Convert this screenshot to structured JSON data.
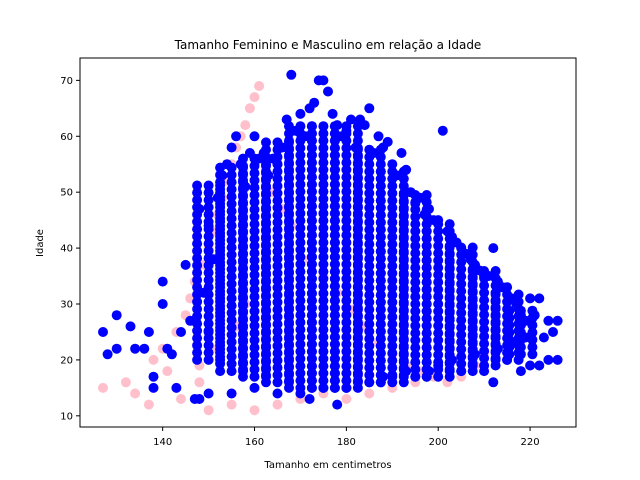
{
  "chart_data": {
    "type": "scatter",
    "title": "Tamanho Feminino e Masculino em relação a Idade",
    "xlabel": "Tamanho em centimetros",
    "ylabel": "Idade",
    "xlim": [
      122,
      230
    ],
    "ylim": [
      8,
      74
    ],
    "xticks": [
      140,
      160,
      180,
      200,
      220
    ],
    "yticks": [
      10,
      20,
      30,
      40,
      50,
      60,
      70
    ],
    "grid": false,
    "legend": "none",
    "series": [
      {
        "color": "#ffc0cb",
        "x_range": [
          127,
          210
        ],
        "y_range": [
          11,
          69
        ],
        "points": [
          [
            127,
            15
          ],
          [
            132,
            16
          ],
          [
            134,
            14
          ],
          [
            137,
            12
          ],
          [
            138,
            20
          ],
          [
            140,
            22
          ],
          [
            141,
            18
          ],
          [
            143,
            25
          ],
          [
            144,
            13
          ],
          [
            145,
            28
          ],
          [
            146,
            31
          ],
          [
            147,
            34
          ],
          [
            148,
            19
          ],
          [
            149,
            37
          ],
          [
            150,
            40
          ],
          [
            151,
            43
          ],
          [
            152,
            46
          ],
          [
            153,
            49
          ],
          [
            154,
            52
          ],
          [
            155,
            55
          ],
          [
            156,
            58
          ],
          [
            157,
            60
          ],
          [
            158,
            62
          ],
          [
            159,
            65
          ],
          [
            160,
            67
          ],
          [
            161,
            69
          ],
          [
            162,
            56
          ],
          [
            163,
            53
          ],
          [
            164,
            50
          ],
          [
            166,
            47
          ],
          [
            168,
            44
          ],
          [
            170,
            41
          ],
          [
            172,
            38
          ],
          [
            175,
            35
          ],
          [
            178,
            32
          ],
          [
            181,
            29
          ],
          [
            184,
            26
          ],
          [
            187,
            23
          ],
          [
            190,
            21
          ],
          [
            193,
            19
          ],
          [
            196,
            18
          ],
          [
            199,
            17
          ],
          [
            202,
            16
          ],
          [
            205,
            17
          ],
          [
            208,
            19
          ],
          [
            210,
            21
          ],
          [
            150,
            11
          ],
          [
            155,
            12
          ],
          [
            160,
            11
          ],
          [
            165,
            12
          ],
          [
            170,
            13
          ],
          [
            175,
            14
          ],
          [
            180,
            13
          ],
          [
            185,
            14
          ],
          [
            190,
            15
          ],
          [
            195,
            16
          ],
          [
            148,
            16
          ],
          [
            152,
            22
          ],
          [
            156,
            26
          ],
          [
            158,
            30
          ]
        ]
      },
      {
        "color": "#0000ff",
        "x_range": [
          127,
          226
        ],
        "y_range": [
          12,
          71
        ],
        "points": [
          [
            127,
            25
          ],
          [
            128,
            21
          ],
          [
            130,
            28
          ],
          [
            130,
            22
          ],
          [
            133,
            26
          ],
          [
            134,
            22
          ],
          [
            136,
            22
          ],
          [
            137,
            25
          ],
          [
            138,
            17
          ],
          [
            138,
            15
          ],
          [
            140,
            34
          ],
          [
            140,
            30
          ],
          [
            141,
            22
          ],
          [
            142,
            21
          ],
          [
            143,
            15
          ],
          [
            144,
            25
          ],
          [
            145,
            37
          ],
          [
            146,
            27
          ],
          [
            147,
            13
          ],
          [
            148,
            47
          ],
          [
            149,
            32
          ],
          [
            150,
            44
          ],
          [
            150,
            25
          ],
          [
            151,
            38
          ],
          [
            152,
            49
          ],
          [
            153,
            53
          ],
          [
            154,
            55
          ],
          [
            155,
            58
          ],
          [
            156,
            60
          ],
          [
            157,
            55
          ],
          [
            158,
            51
          ],
          [
            159,
            57
          ],
          [
            160,
            60
          ],
          [
            161,
            56
          ],
          [
            162,
            57
          ],
          [
            163,
            53
          ],
          [
            164,
            56
          ],
          [
            165,
            55
          ],
          [
            166,
            58
          ],
          [
            167,
            63
          ],
          [
            168,
            71
          ],
          [
            169,
            61
          ],
          [
            170,
            64
          ],
          [
            171,
            60
          ],
          [
            172,
            65
          ],
          [
            173,
            66
          ],
          [
            174,
            70
          ],
          [
            175,
            70
          ],
          [
            176,
            68
          ],
          [
            177,
            64
          ],
          [
            178,
            62
          ],
          [
            179,
            60
          ],
          [
            180,
            61
          ],
          [
            181,
            63
          ],
          [
            182,
            58
          ],
          [
            183,
            63
          ],
          [
            184,
            62
          ],
          [
            185,
            65
          ],
          [
            186,
            57
          ],
          [
            187,
            60
          ],
          [
            188,
            58
          ],
          [
            189,
            59
          ],
          [
            190,
            55
          ],
          [
            191,
            53
          ],
          [
            192,
            57
          ],
          [
            193,
            54
          ],
          [
            194,
            50
          ],
          [
            195,
            48
          ],
          [
            196,
            49
          ],
          [
            197,
            46
          ],
          [
            198,
            47
          ],
          [
            199,
            45
          ],
          [
            200,
            45
          ],
          [
            201,
            61
          ],
          [
            202,
            43
          ],
          [
            203,
            42
          ],
          [
            204,
            41
          ],
          [
            205,
            40
          ],
          [
            206,
            39
          ],
          [
            207,
            38
          ],
          [
            208,
            37
          ],
          [
            209,
            36
          ],
          [
            210,
            35
          ],
          [
            211,
            35
          ],
          [
            212,
            40
          ],
          [
            213,
            34
          ],
          [
            214,
            33
          ],
          [
            215,
            33
          ],
          [
            216,
            31
          ],
          [
            217,
            30
          ],
          [
            218,
            28
          ],
          [
            219,
            27
          ],
          [
            220,
            31
          ],
          [
            221,
            28
          ],
          [
            222,
            31
          ],
          [
            223,
            24
          ],
          [
            224,
            27
          ],
          [
            225,
            25
          ],
          [
            226,
            27
          ],
          [
            226,
            20
          ],
          [
            224,
            20
          ],
          [
            222,
            19
          ],
          [
            220,
            19
          ],
          [
            218,
            18
          ],
          [
            215,
            20
          ],
          [
            212,
            16
          ],
          [
            210,
            18
          ],
          [
            205,
            18
          ],
          [
            200,
            19
          ],
          [
            195,
            17
          ],
          [
            190,
            17
          ],
          [
            185,
            16
          ],
          [
            180,
            15
          ],
          [
            175,
            15
          ],
          [
            170,
            14
          ],
          [
            165,
            14
          ],
          [
            160,
            15
          ],
          [
            155,
            14
          ],
          [
            150,
            14
          ],
          [
            148,
            13
          ],
          [
            178,
            12
          ],
          [
            172,
            13
          ],
          [
            188,
            17
          ],
          [
            193,
            18
          ],
          [
            198,
            18
          ],
          [
            203,
            20
          ],
          [
            208,
            21
          ],
          [
            213,
            22
          ],
          [
            216,
            23
          ],
          [
            219,
            24
          ]
        ]
      }
    ]
  }
}
